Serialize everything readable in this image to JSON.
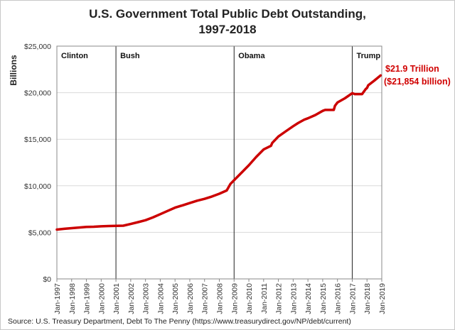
{
  "chart_data": {
    "type": "line",
    "title_lines": [
      "U.S. Government Total Public Debt Outstanding,",
      "1997-2018"
    ],
    "ylabel": "Billions",
    "ylim": [
      0,
      25000
    ],
    "y_ticks": [
      0,
      5000,
      10000,
      15000,
      20000,
      25000
    ],
    "y_tick_labels": [
      "$0",
      "$5,000",
      "$10,000",
      "$15,000",
      "$20,000",
      "$25,000"
    ],
    "x_range": [
      "1997-01",
      "2019-01"
    ],
    "x_tick_labels": [
      "Jan-1997",
      "Jan-1998",
      "Jan-1999",
      "Jan-2000",
      "Jan-2001",
      "Jan-2002",
      "Jan-2003",
      "Jan-2004",
      "Jan-2005",
      "Jan-2006",
      "Jan-2007",
      "Jan-2008",
      "Jan-2009",
      "Jan-2010",
      "Jan-2011",
      "Jan-2012",
      "Jan-2013",
      "Jan-2014",
      "Jan-2015",
      "Jan-2016",
      "Jan-2017",
      "Jan-2018",
      "Jan-2019"
    ],
    "grid": "horizontal",
    "series": [
      {
        "color": "#cc0000",
        "x": [
          "1997-01",
          "1997-07",
          "1998-01",
          "1998-07",
          "1999-01",
          "1999-07",
          "2000-01",
          "2000-07",
          "2001-01",
          "2001-07",
          "2002-01",
          "2002-07",
          "2003-01",
          "2003-07",
          "2004-01",
          "2004-07",
          "2005-01",
          "2005-07",
          "2006-01",
          "2006-07",
          "2007-01",
          "2007-07",
          "2008-01",
          "2008-07",
          "2008-10",
          "2009-01",
          "2009-07",
          "2010-01",
          "2010-07",
          "2011-01",
          "2011-07",
          "2011-08",
          "2012-01",
          "2012-07",
          "2013-01",
          "2013-05",
          "2013-10",
          "2014-01",
          "2014-07",
          "2015-01",
          "2015-03",
          "2015-10",
          "2015-11",
          "2016-01",
          "2016-07",
          "2017-01",
          "2017-03",
          "2017-09",
          "2017-12",
          "2018-01",
          "2018-02",
          "2018-07",
          "2018-12"
        ],
        "values": [
          5300,
          5380,
          5450,
          5520,
          5580,
          5600,
          5650,
          5680,
          5700,
          5720,
          5900,
          6100,
          6300,
          6600,
          6950,
          7300,
          7650,
          7900,
          8150,
          8400,
          8600,
          8850,
          9150,
          9500,
          10200,
          10600,
          11400,
          12200,
          13100,
          13900,
          14300,
          14600,
          15300,
          15850,
          16400,
          16740,
          17100,
          17250,
          17600,
          18050,
          18150,
          18150,
          18600,
          18950,
          19400,
          19950,
          19850,
          19850,
          20400,
          20500,
          20800,
          21300,
          21854
        ]
      }
    ],
    "dividers": [
      {
        "x": "2001-01",
        "label": "Bush"
      },
      {
        "x": "2009-01",
        "label": "Obama"
      },
      {
        "x": "2017-01",
        "label": "Trump"
      }
    ],
    "era_first_label": "Clinton",
    "annotation": {
      "line1": "$21.9 Trillion",
      "line2": "($21,854 billion)",
      "color": "#cc0000"
    },
    "source": "Source: U.S. Treasury Department, Debt To The Penny (https://www.treasurydirect.gov/NP/debt/current)"
  }
}
